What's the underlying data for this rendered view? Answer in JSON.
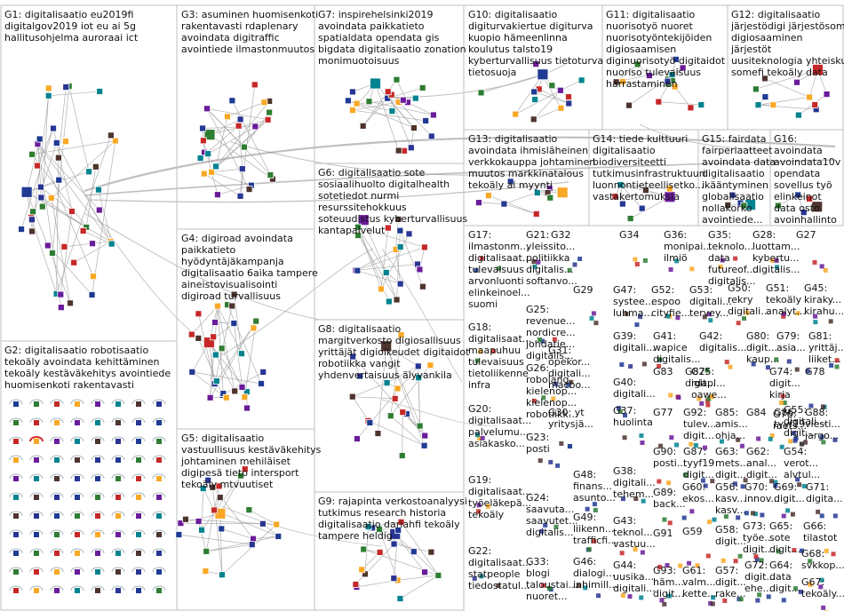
{
  "chart_data": {
    "type": "network",
    "groups": [
      {
        "id": "G1",
        "lines": [
          "G1: digitalisaatio eu2019fi",
          "digitalgov2019 iot eu ai 5g",
          "hallitusohjelma auroraai ict"
        ]
      },
      {
        "id": "G2",
        "lines": [
          "G2: digitalisaatio robotisaatio",
          "tekoäly avoindata kehittäminen",
          "tekoäly kestäväkehitys avointiede",
          "huomisenkoti rakentavasti"
        ]
      },
      {
        "id": "G3",
        "lines": [
          "G3: asuminen huomisenkoti",
          "rakentavasti rdaplenary",
          "avoindata digitraffic",
          "avointiede ilmastonmuutos"
        ]
      },
      {
        "id": "G4",
        "lines": [
          "G4: digiroad avoindata",
          "paikkatieto",
          "hyödyntäjäkampanja",
          "digitalisaatio 6aika tampere",
          "aineistovisualisointi",
          "digiroad turvallisuus"
        ]
      },
      {
        "id": "G5",
        "lines": [
          "G5: digitalisaatio",
          "vastuullisuus kestäväkehitys",
          "johtaminen mehiläiset",
          "digipesä tieto intersport",
          "tekoäly mtvuutiset"
        ]
      },
      {
        "id": "G6",
        "lines": [
          "G6: digitalisaatio sote",
          "sosiaalihuolto digitalhealth",
          "sotetiedot nurmi",
          "resurssitehokkuus",
          "soteuudistus kyberturvallisuus",
          "kantapalvelut"
        ]
      },
      {
        "id": "G7",
        "lines": [
          "G7: inspirehelsinki2019",
          "avoindata paikkatieto",
          "spatialdata opendata gis",
          "bigdata digitalisaatio zonation",
          "monimuotoisuus"
        ]
      },
      {
        "id": "G8",
        "lines": [
          "G8: digitalisaatio",
          "margitverkosto digiosallisuus",
          "yrittäjät digioikeudet digitaidot",
          "robotiikka vangit",
          "yhdenvertaisuus älyvankila"
        ]
      },
      {
        "id": "G9",
        "lines": [
          "G9: rajapinta verkostoanalyysi",
          "tutkimus research historia",
          "digitalisaatio dariahfi tekoäly",
          "tampere heldig"
        ]
      },
      {
        "id": "G10",
        "lines": [
          "G10: digitalisaatio",
          "digiturvakiertue digiturva",
          "kuopio hämeenlinna",
          "koulutus talsto19",
          "kyberturvallisuus tietoturva",
          "tietosuoja"
        ]
      },
      {
        "id": "G11",
        "lines": [
          "G11: digitalisaatio",
          "nuorisotyö nuoret",
          "nuorisotyöntekijöiden",
          "digiosaamisen",
          "diginuorisotyö digitaidot",
          "nuoriso tulevaisuus",
          "harrastaminen"
        ]
      },
      {
        "id": "G12",
        "lines": [
          "G12: digitalisaatio",
          "järjestödigi järjestösome viestintä",
          "digiosaaminen",
          "järjestöt",
          "uusiteknologia yhteiskunta",
          "somefi tekoäly data"
        ]
      },
      {
        "id": "G13",
        "lines": [
          "G13: digitalisaatio",
          "avoindata ihmisläheinen",
          "verkkokauppa johtaminen",
          "muutos markkinatalous",
          "tekoäly ai myynti"
        ]
      },
      {
        "id": "G14",
        "lines": [
          "G14: tiede kulttuuri",
          "digitalisaatio",
          "biodiversiteetti",
          "tutkimusinfrastruktuuri",
          "luonnontieteellisetko...",
          "vastakertomuksia"
        ]
      },
      {
        "id": "G15",
        "lines": [
          "G15: fairdata",
          "fairperiaatteet",
          "avoindata data",
          "digitalisaatio",
          "ikääntyminen",
          "globalisaatio",
          "nollakorko",
          "avointiede..."
        ]
      },
      {
        "id": "G16",
        "lines": [
          "G16:",
          "avoindata",
          "avoindata10v",
          "opendata",
          "sovellus työ",
          "elinkeinot",
          "data osto",
          "avoinhallinto"
        ]
      },
      {
        "id": "G17",
        "lines": [
          "G17:",
          "ilmastonm...",
          "digitalisaat...",
          "tulevaisuus",
          "arvonluonti",
          "elinkeinoel...",
          "suomi"
        ]
      },
      {
        "id": "G18",
        "lines": [
          "G18:",
          "digitalisaat...",
          "maapuhuu",
          "tulevaisuus",
          "tietoliikenne",
          "infra"
        ]
      },
      {
        "id": "G19",
        "lines": [
          "G19:",
          "digitalisaat...",
          "työeläkepä...",
          "tekoäly"
        ]
      },
      {
        "id": "G20",
        "lines": [
          "G20:",
          "digitalisaat...",
          "palvelumu...",
          "asiakasko..."
        ]
      },
      {
        "id": "G21",
        "lines": [
          "G21:",
          "yleissito...",
          "politiikka",
          "digitalis...",
          "softanvo..."
        ]
      },
      {
        "id": "G22",
        "lines": [
          "G22:",
          "digitalisaat...",
          "statpeople",
          "tiedostatul..."
        ]
      },
      {
        "id": "G23",
        "lines": [
          "G23:",
          "posti"
        ]
      },
      {
        "id": "G24",
        "lines": [
          "G24:",
          "saavuta...",
          "saavutet...",
          "digitalis..."
        ]
      },
      {
        "id": "G25",
        "lines": [
          "G25:",
          "revenue...",
          "nordicre...",
          "johdatie...",
          "digitalis..."
        ]
      },
      {
        "id": "G26",
        "lines": [
          "G26:",
          "robolang",
          "kielenop...",
          "kielenop...",
          "robotiikk..."
        ]
      },
      {
        "id": "G27",
        "lines": [
          "G27"
        ]
      },
      {
        "id": "G28",
        "lines": [
          "G28:",
          "luottam...",
          "kybertu...",
          "digitalis..."
        ]
      },
      {
        "id": "G29",
        "lines": [
          "G29"
        ]
      },
      {
        "id": "G30",
        "lines": [
          "G30: yt",
          "yritysjä..."
        ]
      },
      {
        "id": "G31",
        "lines": [
          "G31:",
          "opekor...",
          "digitali...",
          "macbo..."
        ]
      },
      {
        "id": "G32",
        "lines": [
          "G32"
        ]
      },
      {
        "id": "G33",
        "lines": [
          "G33:",
          "blogi",
          "taloustai...",
          "nuoret..."
        ]
      },
      {
        "id": "G34",
        "lines": [
          "G34"
        ]
      },
      {
        "id": "G35",
        "lines": [
          "G35:",
          "teknolo...",
          "data",
          "futureof...",
          "digitalis..."
        ]
      },
      {
        "id": "G36",
        "lines": [
          "G36:",
          "monipai...",
          "ilmiö"
        ]
      },
      {
        "id": "G37",
        "lines": [
          "G37:",
          "huolinta"
        ]
      },
      {
        "id": "G38",
        "lines": [
          "G38:",
          "digitali...",
          "tehem..."
        ]
      },
      {
        "id": "G39",
        "lines": [
          "G39:",
          "digitali..."
        ]
      },
      {
        "id": "G40",
        "lines": [
          "G40:",
          "digitali..."
        ]
      },
      {
        "id": "G41",
        "lines": [
          "G41:",
          "wapice",
          "digitalis..."
        ]
      },
      {
        "id": "G42",
        "lines": [
          "G42:",
          "digitalis..."
        ]
      },
      {
        "id": "G43",
        "lines": [
          "G43:",
          "teknol...",
          "vastuu..."
        ]
      },
      {
        "id": "G44",
        "lines": [
          "G44:",
          "uusika...",
          "digitali..."
        ]
      },
      {
        "id": "G45",
        "lines": [
          "G45:",
          "kiraky...",
          "kirahu..."
        ]
      },
      {
        "id": "G46",
        "lines": [
          "G46:",
          "dialogi...",
          "inhimill..."
        ]
      },
      {
        "id": "G47",
        "lines": [
          "G47:",
          "systee...",
          "luhma..."
        ]
      },
      {
        "id": "G48",
        "lines": [
          "G48:",
          "finans...",
          "asunto..."
        ]
      },
      {
        "id": "G49",
        "lines": [
          "G49:",
          "liikenn...",
          "trafficfi..."
        ]
      },
      {
        "id": "G50",
        "lines": [
          "G50:",
          "rekry",
          "digitali..."
        ]
      },
      {
        "id": "G51",
        "lines": [
          "G51:",
          "tekoäly",
          "analyt..."
        ]
      },
      {
        "id": "G52",
        "lines": [
          "G52:",
          "espoo",
          "cityfie..."
        ]
      },
      {
        "id": "G53",
        "lines": [
          "G53:",
          "digitali...",
          "tervey..."
        ]
      },
      {
        "id": "G54",
        "lines": [
          "G54:",
          "verot...",
          "alvtul..."
        ]
      },
      {
        "id": "G55",
        "lines": [
          "G55:",
          "digitali...",
          "digit..."
        ]
      },
      {
        "id": "G56",
        "lines": [
          "G56:",
          "kasv...",
          "kasv..."
        ]
      },
      {
        "id": "G57",
        "lines": [
          "G57:",
          "digit...",
          "rake..."
        ]
      },
      {
        "id": "G58",
        "lines": [
          "G58:",
          "digit..."
        ]
      },
      {
        "id": "G59",
        "lines": [
          "G59"
        ]
      },
      {
        "id": "G60",
        "lines": [
          "G60:",
          "ekos..."
        ]
      },
      {
        "id": "G61",
        "lines": [
          "G61:",
          "valm...",
          "kette..."
        ]
      },
      {
        "id": "G62",
        "lines": [
          "G62:",
          "anal...",
          "digit..."
        ]
      },
      {
        "id": "G63",
        "lines": [
          "G63:",
          "mets...",
          "digit..."
        ]
      },
      {
        "id": "G64",
        "lines": [
          "G64:",
          "data",
          "digit..."
        ]
      },
      {
        "id": "G65",
        "lines": [
          "G65:",
          "sote",
          "digit..."
        ]
      },
      {
        "id": "G66",
        "lines": [
          "G66:",
          "tilastot"
        ]
      },
      {
        "id": "G67",
        "lines": [
          "G67:",
          "tekoäly..."
        ]
      },
      {
        "id": "G68",
        "lines": [
          "G68:",
          "svkkop..."
        ]
      },
      {
        "id": "G69",
        "lines": [
          "G69:",
          "digit..."
        ]
      },
      {
        "id": "G70",
        "lines": [
          "G70:",
          "innov..."
        ]
      },
      {
        "id": "G71",
        "lines": [
          "G71:",
          "digita..."
        ]
      },
      {
        "id": "G72",
        "lines": [
          "G72:",
          "digit...",
          "ehe..."
        ]
      },
      {
        "id": "G73",
        "lines": [
          "G73:",
          "työe...",
          "digit..."
        ]
      },
      {
        "id": "G74",
        "lines": [
          "G74:",
          "digit...",
          "kirja"
        ]
      },
      {
        "id": "G75",
        "lines": [
          "G75:",
          "rdapl...",
          "oawe..."
        ]
      },
      {
        "id": "G76",
        "lines": [
          "G76:",
          "mets..."
        ]
      },
      {
        "id": "G77",
        "lines": [
          "G77"
        ]
      },
      {
        "id": "G78",
        "lines": [
          "G78"
        ]
      },
      {
        "id": "G79",
        "lines": [
          "G79:",
          "asia..."
        ]
      },
      {
        "id": "G80",
        "lines": [
          "G80:",
          "digit...",
          "kaup..."
        ]
      },
      {
        "id": "G81",
        "lines": [
          "G81:",
          "yrittäj...",
          "liiket..."
        ]
      },
      {
        "id": "G82",
        "lines": [
          "G82:",
          "digit..."
        ]
      },
      {
        "id": "G83",
        "lines": [
          "G83"
        ]
      },
      {
        "id": "G84",
        "lines": [
          "G84"
        ]
      },
      {
        "id": "G85",
        "lines": [
          "G85:",
          "amis...",
          "ohja..."
        ]
      },
      {
        "id": "G86",
        "lines": [
          "G86:",
          "tyyf19"
        ]
      },
      {
        "id": "G87",
        "lines": [
          "G87:",
          "tyyf19",
          "digit..."
        ]
      },
      {
        "id": "G88",
        "lines": [
          "G88:",
          "viesti...",
          "jargo..."
        ]
      },
      {
        "id": "G89",
        "lines": [
          "G89:",
          "back..."
        ]
      },
      {
        "id": "G90",
        "lines": [
          "G90:",
          "posti..."
        ]
      },
      {
        "id": "G91",
        "lines": [
          "G91"
        ]
      },
      {
        "id": "G92",
        "lines": [
          "G92:",
          "tulev...",
          "digit..."
        ]
      },
      {
        "id": "G93",
        "lines": [
          "G93:",
          "häm...",
          "digit..."
        ]
      }
    ]
  }
}
